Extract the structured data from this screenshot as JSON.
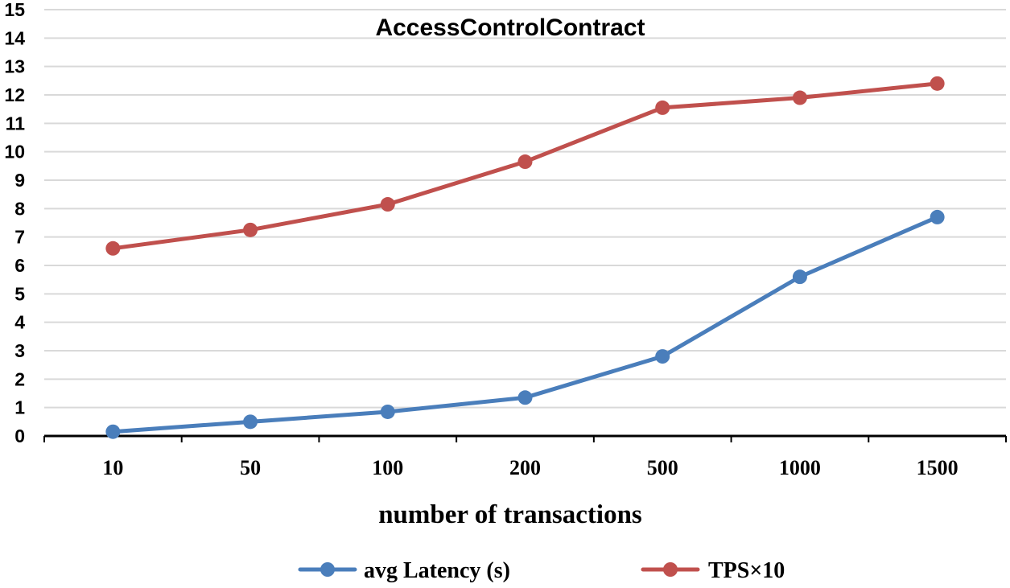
{
  "chart_data": {
    "type": "line",
    "title": "AccessControlContract",
    "xlabel": "number of transactions",
    "ylabel": "",
    "categories": [
      "10",
      "50",
      "100",
      "200",
      "500",
      "1000",
      "1500"
    ],
    "yticks": [
      "0",
      "1",
      "2",
      "3",
      "4",
      "5",
      "6",
      "7",
      "8",
      "9",
      "10",
      "11",
      "12",
      "13",
      "14",
      "15"
    ],
    "ylim": [
      0,
      15
    ],
    "grid": true,
    "legend_position": "bottom",
    "series": [
      {
        "name": "avg Latency (s)",
        "color": "#4a7ebb",
        "values": [
          0.15,
          0.5,
          0.85,
          1.35,
          2.8,
          5.6,
          7.7
        ]
      },
      {
        "name": "TPS×10",
        "color": "#c0504d",
        "values": [
          6.6,
          7.25,
          8.15,
          9.65,
          11.55,
          11.9,
          12.4
        ]
      }
    ]
  }
}
